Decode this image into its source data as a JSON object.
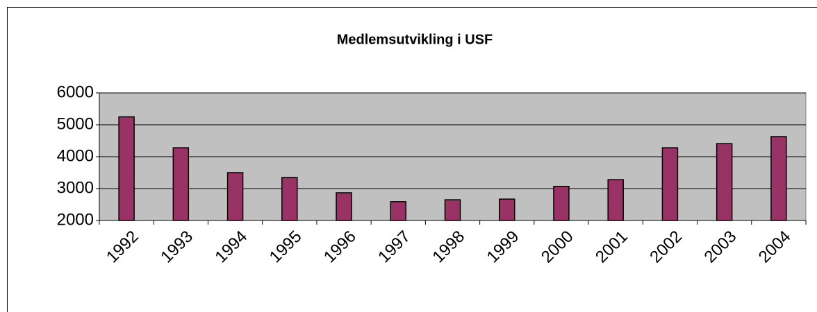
{
  "chart_data": {
    "type": "bar",
    "title": "Medlemsutvikling i USF",
    "categories": [
      "1992",
      "1993",
      "1994",
      "1995",
      "1996",
      "1997",
      "1998",
      "1999",
      "2000",
      "2001",
      "2002",
      "2003",
      "2004"
    ],
    "values": [
      5250,
      4280,
      3500,
      3350,
      2870,
      2590,
      2650,
      2670,
      3070,
      3280,
      4280,
      4410,
      4630
    ],
    "color": "#993366",
    "ylim": [
      2000,
      6000
    ],
    "yticks": [
      2000,
      3000,
      4000,
      5000,
      6000
    ],
    "grid": true
  }
}
